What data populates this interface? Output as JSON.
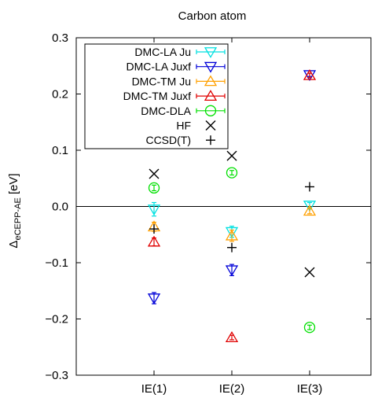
{
  "chart_data": {
    "type": "scatter",
    "title": "Carbon atom",
    "ylabel": "eCEPP-AE [eV]",
    "ylabel_symbol": "Δ",
    "ylabel_subscript": "eCEPP-AE",
    "ylabel_unit": "[eV]",
    "ylim": [
      -0.3,
      0.3
    ],
    "yticks": [
      -0.3,
      -0.2,
      -0.1,
      0.0,
      0.1,
      0.2,
      0.3
    ],
    "ytick_labels": [
      "−0.3",
      "−0.2",
      "−0.1",
      "0.0",
      "0.1",
      "0.2",
      "0.3"
    ],
    "categories": [
      "IE(1)",
      "IE(2)",
      "IE(3)"
    ],
    "grid": false,
    "zero_line": true,
    "legend_position": "top-left",
    "series": [
      {
        "name": "DMC-LA Ju",
        "marker": "triangle-down",
        "color": "#00e0e0",
        "values": [
          -0.005,
          -0.045,
          0.002
        ],
        "errors": [
          0.012,
          0.01,
          0.005
        ]
      },
      {
        "name": "DMC-LA Juxf",
        "marker": "triangle-down",
        "color": "#0000d8",
        "values": [
          -0.163,
          -0.113,
          0.234
        ],
        "errors": [
          0.01,
          0.01,
          0.003
        ]
      },
      {
        "name": "DMC-TM Ju",
        "marker": "triangle-up",
        "color": "#ffa000",
        "values": [
          -0.036,
          -0.052,
          -0.008
        ],
        "errors": [
          0.008,
          0.01,
          0.005
        ]
      },
      {
        "name": "DMC-TM Juxf",
        "marker": "triangle-up",
        "color": "#e00000",
        "values": [
          -0.063,
          -0.233,
          0.233
        ],
        "errors": [
          0.007,
          0.004,
          0.004
        ]
      },
      {
        "name": "DMC-DLA",
        "marker": "circle",
        "color": "#00e000",
        "values": [
          0.033,
          0.06,
          -0.215
        ],
        "errors": [
          0.005,
          0.004,
          0.004
        ]
      },
      {
        "name": "HF",
        "marker": "x",
        "color": "#000000",
        "values": [
          0.058,
          0.09,
          -0.117
        ]
      },
      {
        "name": "CCSD(T)",
        "marker": "plus",
        "color": "#000000",
        "values": [
          -0.04,
          -0.073,
          0.035
        ]
      }
    ]
  }
}
